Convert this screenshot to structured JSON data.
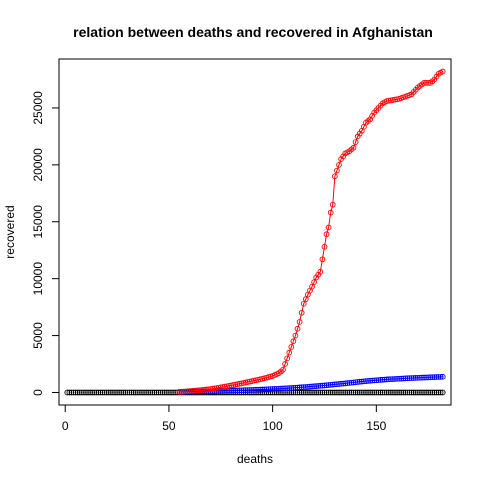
{
  "chart_data": {
    "type": "scatter",
    "title": "relation between deaths and recovered in Afghanistan",
    "xlabel": "deaths",
    "ylabel": "recovered",
    "xlim": [
      -3,
      186
    ],
    "ylim": [
      -1100,
      29300
    ],
    "x_ticks": [
      0,
      50,
      100,
      150
    ],
    "y_ticks": [
      0,
      5000,
      10000,
      15000,
      20000,
      25000
    ],
    "x_tick_labels": [
      "0",
      "50",
      "100",
      "150"
    ],
    "y_tick_labels": [
      "0",
      "5000",
      "10000",
      "15000",
      "20000",
      "25000"
    ],
    "grid": false,
    "colors": {
      "black_points": "#000000",
      "blue_series": "#0000ff",
      "red_series": "#ff0000"
    },
    "black_points": {
      "x_start": 1,
      "x_end": 182,
      "y_start": 0,
      "y_end": 0,
      "style": "open-circles"
    },
    "series": [
      {
        "color": "#0000ff",
        "style": "line-with-open-circles",
        "x": [
          55,
          65,
          75,
          85,
          95,
          105,
          115,
          125,
          135,
          145,
          155,
          165,
          175,
          182
        ],
        "y": [
          50,
          90,
          140,
          190,
          260,
          350,
          470,
          620,
          800,
          1000,
          1150,
          1250,
          1330,
          1380
        ]
      },
      {
        "color": "#ff0000",
        "style": "line-with-open-circles",
        "x": [
          55,
          60,
          65,
          70,
          75,
          80,
          85,
          90,
          95,
          100,
          103,
          105,
          107,
          109,
          111,
          113,
          115,
          117,
          119,
          121,
          123,
          125,
          126,
          127,
          128,
          129,
          130,
          131,
          133,
          135,
          137,
          139,
          141,
          143,
          145,
          147,
          149,
          151,
          153,
          155,
          158,
          161,
          164,
          167,
          170,
          173,
          176,
          178,
          180,
          182
        ],
        "y": [
          50,
          120,
          200,
          300,
          450,
          620,
          800,
          1000,
          1200,
          1450,
          1700,
          2000,
          3000,
          4000,
          5000,
          6200,
          7800,
          8600,
          9300,
          10100,
          10600,
          12800,
          13900,
          14500,
          15800,
          16500,
          19000,
          19500,
          20500,
          21000,
          21200,
          21500,
          22500,
          23000,
          23700,
          24000,
          24600,
          25000,
          25400,
          25600,
          25700,
          25800,
          26000,
          26200,
          26800,
          27200,
          27200,
          27500,
          28000,
          28200
        ]
      }
    ]
  }
}
